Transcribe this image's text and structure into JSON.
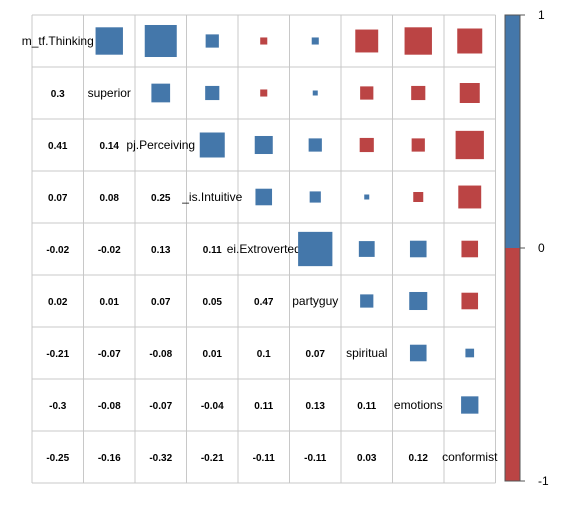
{
  "chart_data": {
    "type": "heatmap",
    "variables": [
      "m_tf.Thinking",
      "superior",
      "pj.Perceiving",
      "_is.Intuitive",
      "ei.Extroverted",
      "partyguy",
      "spiritual",
      "emotions",
      "conformist"
    ],
    "lower_labels": [
      [],
      [
        "0.3"
      ],
      [
        "0.41",
        "0.14"
      ],
      [
        "0.07",
        "0.08",
        "0.25"
      ],
      [
        "-0.02",
        "-0.02",
        "0.13",
        "0.11"
      ],
      [
        "0.02",
        "0.01",
        "0.07",
        "0.05",
        "0.47"
      ],
      [
        "-0.21",
        "-0.07",
        "-0.08",
        "0.01",
        "0.1",
        "0.07"
      ],
      [
        "-0.3",
        "-0.08",
        "-0.07",
        "-0.04",
        "0.11",
        "0.13",
        "0.11"
      ],
      [
        "-0.25",
        "-0.16",
        "-0.32",
        "-0.21",
        "-0.11",
        "-0.11",
        "0.03",
        "0.12"
      ]
    ],
    "matrix": [
      [
        1,
        0.3,
        0.41,
        0.07,
        -0.02,
        0.02,
        -0.21,
        -0.3,
        -0.25
      ],
      [
        0.3,
        1,
        0.14,
        0.08,
        -0.02,
        0.01,
        -0.07,
        -0.08,
        -0.16
      ],
      [
        0.41,
        0.14,
        1,
        0.25,
        0.13,
        0.07,
        -0.08,
        -0.07,
        -0.32
      ],
      [
        0.07,
        0.08,
        0.25,
        1,
        0.11,
        0.05,
        0.01,
        -0.04,
        -0.21
      ],
      [
        -0.02,
        -0.02,
        0.13,
        0.11,
        1,
        0.47,
        0.1,
        0.11,
        -0.11
      ],
      [
        0.02,
        0.01,
        0.07,
        0.05,
        0.47,
        1,
        0.07,
        0.13,
        -0.11
      ],
      [
        -0.21,
        -0.07,
        -0.08,
        0.01,
        0.1,
        0.07,
        1,
        0.11,
        0.03
      ],
      [
        -0.3,
        -0.08,
        -0.07,
        -0.04,
        0.11,
        0.13,
        0.11,
        1,
        0.12
      ],
      [
        -0.25,
        -0.16,
        -0.32,
        -0.21,
        -0.11,
        -0.11,
        0.03,
        0.12,
        1
      ]
    ],
    "lower": "number",
    "upper": "square",
    "colorbar": {
      "min": -1,
      "max": 1,
      "ticks": [
        "1",
        "0",
        "-1"
      ]
    },
    "colors": {
      "positive": "#4477aa",
      "negative": "#bb4444",
      "grid": "#c8c8c8"
    }
  }
}
